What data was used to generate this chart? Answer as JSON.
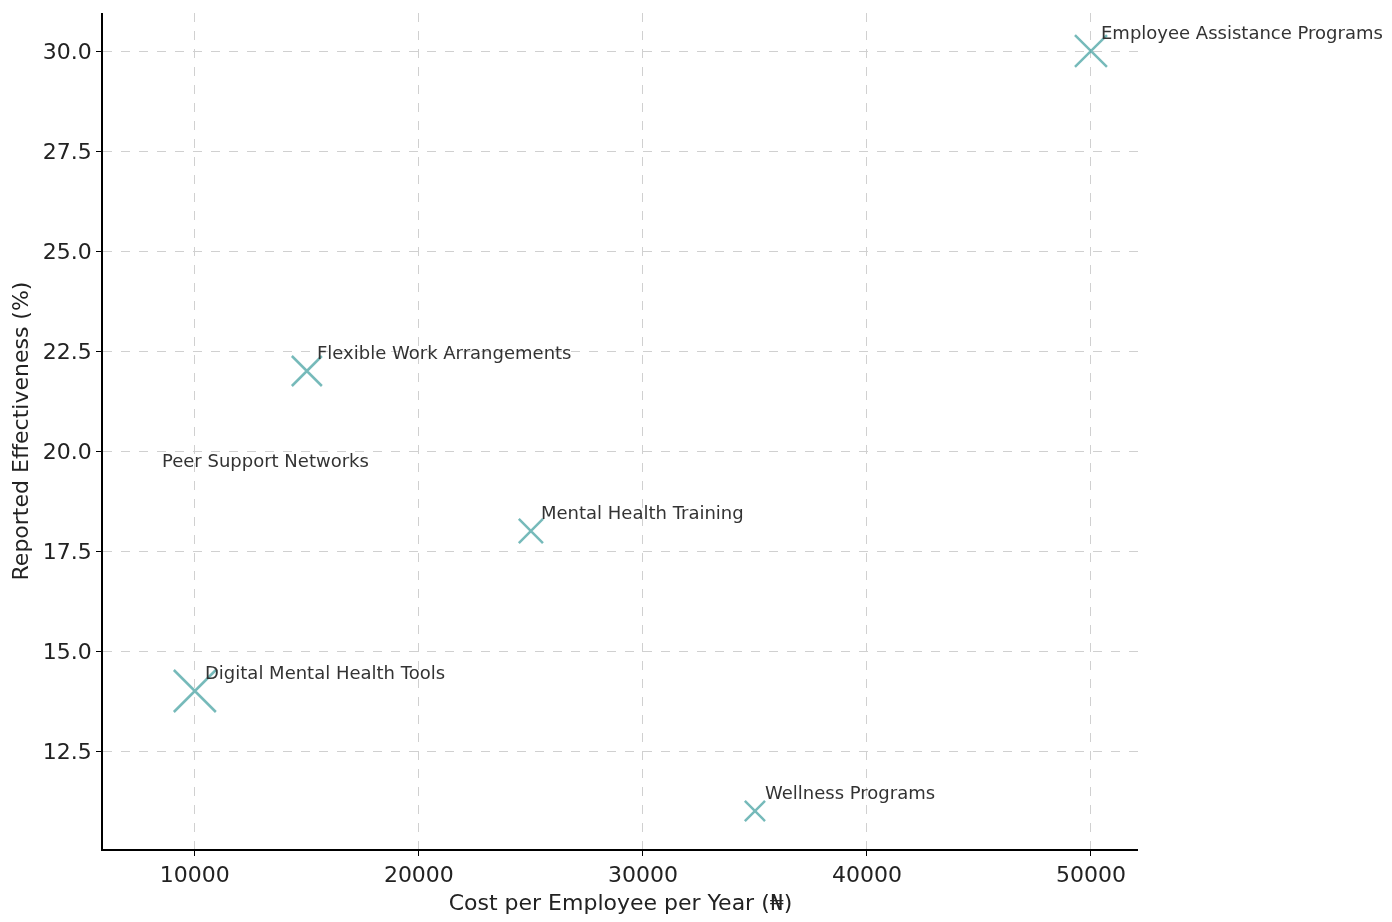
{
  "chart_data": {
    "type": "bubble",
    "xlabel": "Cost per Employee per Year (₦)",
    "ylabel": "Reported Effectiveness (%)",
    "x": [
      50000,
      15000,
      25000,
      10000,
      35000
    ],
    "values": [
      30.0,
      22.0,
      18.0,
      14.0,
      11.0
    ],
    "sizes": [
      0.58,
      0.51,
      0.33,
      1,
      0.23
    ],
    "color": "#3c9c9c",
    "marker": "cross",
    "xlim": [
      5900,
      52100
    ],
    "xticks": [
      10000,
      20000,
      30000,
      40000,
      50000
    ],
    "ylim": [
      10.05,
      30.95
    ],
    "yticks": [
      12.5,
      {
        "value": 15,
        "label": "15.0"
      },
      17.5,
      {
        "value": 20,
        "label": "20.0"
      },
      22.5,
      {
        "value": 25,
        "label": "25.0"
      },
      27.5,
      {
        "value": 30,
        "label": "30.0"
      }
    ],
    "grid": true,
    "annotations": [
      {
        "text": "Employee Assistance Programs",
        "x": 50000,
        "y": 30.0
      },
      {
        "text": "Flexible Work Arrangements",
        "x": 15000,
        "y": 22.0
      },
      "Peer Support Networks",
      {
        "text": "Mental Health Training",
        "x": 25000,
        "y": 18.0
      },
      {
        "text": "Digital Mental Health Tools",
        "x": 10000,
        "y": 14.0
      },
      {
        "text": "Wellness Programs",
        "x": 35000,
        "y": 11.0
      }
    ]
  }
}
